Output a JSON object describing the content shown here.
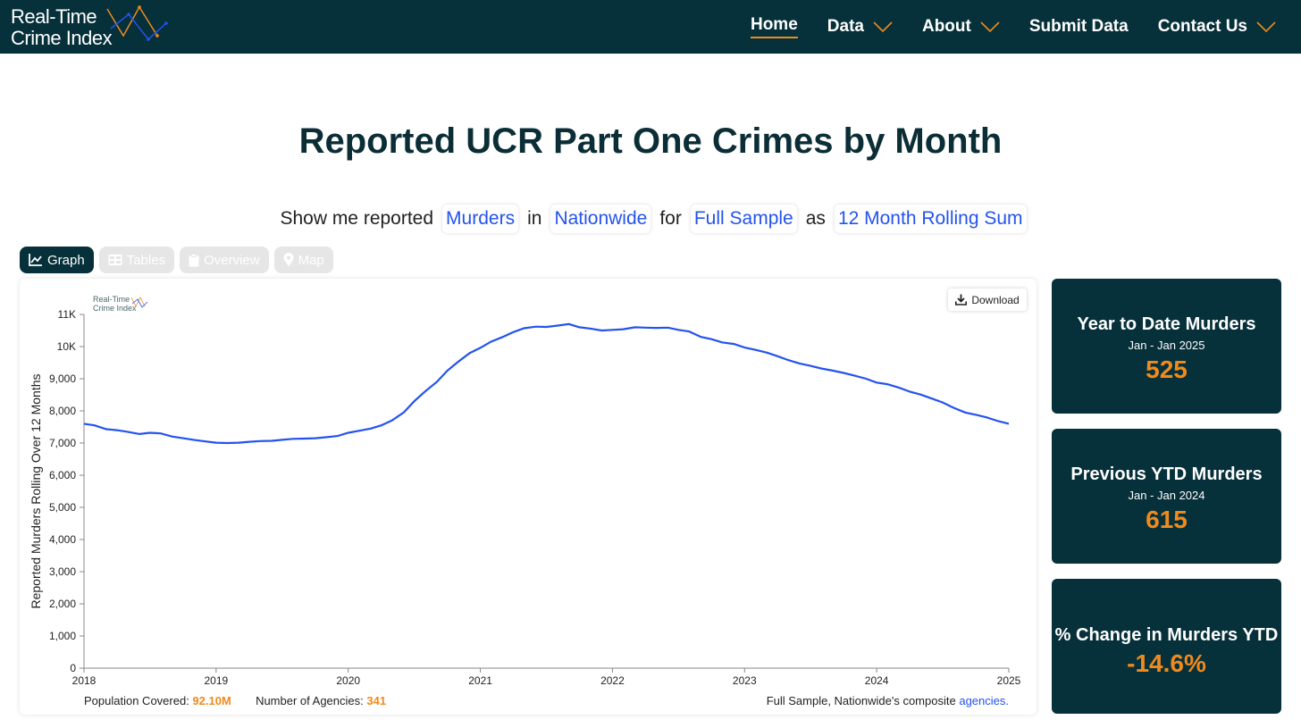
{
  "nav": {
    "logo_line1": "Real-Time",
    "logo_line2": "Crime Index",
    "items": [
      {
        "label": "Home",
        "active": true,
        "dropdown": false
      },
      {
        "label": "Data",
        "active": false,
        "dropdown": true
      },
      {
        "label": "About",
        "active": false,
        "dropdown": true
      },
      {
        "label": "Submit Data",
        "active": false,
        "dropdown": false
      },
      {
        "label": "Contact Us",
        "active": false,
        "dropdown": true
      }
    ]
  },
  "page_title": "Reported UCR Part One Crimes by Month",
  "selector": {
    "prefix": "Show me reported",
    "crime": "Murders",
    "in_word": "in",
    "region": "Nationwide",
    "for_word": "for",
    "sample": "Full Sample",
    "as_word": "as",
    "measure": "12 Month Rolling Sum"
  },
  "tabs": [
    {
      "label": "Graph",
      "icon": "line-chart-icon",
      "active": true
    },
    {
      "label": "Tables",
      "icon": "table-icon",
      "active": false
    },
    {
      "label": "Overview",
      "icon": "clipboard-icon",
      "active": false
    },
    {
      "label": "Map",
      "icon": "map-pin-icon",
      "active": false
    }
  ],
  "download_label": "Download",
  "mini_logo": {
    "line1": "Real-Time",
    "line2": "Crime Index"
  },
  "chart_data": {
    "type": "line",
    "ylabel": "Reported Murders Rolling Over 12 Months",
    "xlabel": "",
    "ylim": [
      0,
      11000
    ],
    "xlim": [
      2018.0,
      2025.0
    ],
    "y_ticks": [
      {
        "v": 0,
        "label": "0"
      },
      {
        "v": 1000,
        "label": "1,000"
      },
      {
        "v": 2000,
        "label": "2,000"
      },
      {
        "v": 3000,
        "label": "3,000"
      },
      {
        "v": 4000,
        "label": "4,000"
      },
      {
        "v": 5000,
        "label": "5,000"
      },
      {
        "v": 6000,
        "label": "6,000"
      },
      {
        "v": 7000,
        "label": "7,000"
      },
      {
        "v": 8000,
        "label": "8,000"
      },
      {
        "v": 9000,
        "label": "9,000"
      },
      {
        "v": 10000,
        "label": "10K"
      },
      {
        "v": 11000,
        "label": "11K"
      }
    ],
    "x_ticks": [
      {
        "v": 2018,
        "label": "2018"
      },
      {
        "v": 2019,
        "label": "2019"
      },
      {
        "v": 2020,
        "label": "2020"
      },
      {
        "v": 2021,
        "label": "2021"
      },
      {
        "v": 2022,
        "label": "2022"
      },
      {
        "v": 2023,
        "label": "2023"
      },
      {
        "v": 2024,
        "label": "2024"
      },
      {
        "v": 2025,
        "label": "2025"
      }
    ],
    "color": "#2353ee",
    "grid": false,
    "series": [
      {
        "points": [
          [
            2018.0,
            7600
          ],
          [
            2018.08,
            7550
          ],
          [
            2018.17,
            7430
          ],
          [
            2018.25,
            7400
          ],
          [
            2018.33,
            7350
          ],
          [
            2018.42,
            7280
          ],
          [
            2018.5,
            7320
          ],
          [
            2018.58,
            7300
          ],
          [
            2018.67,
            7200
          ],
          [
            2018.75,
            7150
          ],
          [
            2018.83,
            7100
          ],
          [
            2018.92,
            7050
          ],
          [
            2019.0,
            7010
          ],
          [
            2019.08,
            7000
          ],
          [
            2019.17,
            7010
          ],
          [
            2019.25,
            7040
          ],
          [
            2019.33,
            7060
          ],
          [
            2019.42,
            7070
          ],
          [
            2019.5,
            7100
          ],
          [
            2019.58,
            7130
          ],
          [
            2019.67,
            7140
          ],
          [
            2019.75,
            7150
          ],
          [
            2019.83,
            7180
          ],
          [
            2019.92,
            7220
          ],
          [
            2020.0,
            7320
          ],
          [
            2020.08,
            7380
          ],
          [
            2020.17,
            7450
          ],
          [
            2020.25,
            7550
          ],
          [
            2020.33,
            7700
          ],
          [
            2020.42,
            7950
          ],
          [
            2020.5,
            8300
          ],
          [
            2020.58,
            8600
          ],
          [
            2020.67,
            8900
          ],
          [
            2020.75,
            9250
          ],
          [
            2020.83,
            9520
          ],
          [
            2020.92,
            9800
          ],
          [
            2021.0,
            9960
          ],
          [
            2021.08,
            10150
          ],
          [
            2021.17,
            10300
          ],
          [
            2021.25,
            10450
          ],
          [
            2021.33,
            10570
          ],
          [
            2021.42,
            10620
          ],
          [
            2021.5,
            10610
          ],
          [
            2021.58,
            10650
          ],
          [
            2021.67,
            10700
          ],
          [
            2021.75,
            10600
          ],
          [
            2021.83,
            10560
          ],
          [
            2021.92,
            10500
          ],
          [
            2022.0,
            10520
          ],
          [
            2022.08,
            10540
          ],
          [
            2022.17,
            10600
          ],
          [
            2022.25,
            10590
          ],
          [
            2022.33,
            10580
          ],
          [
            2022.42,
            10590
          ],
          [
            2022.5,
            10520
          ],
          [
            2022.58,
            10470
          ],
          [
            2022.67,
            10300
          ],
          [
            2022.75,
            10230
          ],
          [
            2022.83,
            10130
          ],
          [
            2022.92,
            10080
          ],
          [
            2023.0,
            9970
          ],
          [
            2023.08,
            9900
          ],
          [
            2023.17,
            9810
          ],
          [
            2023.25,
            9700
          ],
          [
            2023.33,
            9580
          ],
          [
            2023.42,
            9470
          ],
          [
            2023.5,
            9400
          ],
          [
            2023.58,
            9320
          ],
          [
            2023.67,
            9250
          ],
          [
            2023.75,
            9180
          ],
          [
            2023.83,
            9100
          ],
          [
            2023.92,
            9000
          ],
          [
            2024.0,
            8880
          ],
          [
            2024.08,
            8830
          ],
          [
            2024.17,
            8720
          ],
          [
            2024.25,
            8600
          ],
          [
            2024.33,
            8510
          ],
          [
            2024.42,
            8380
          ],
          [
            2024.5,
            8260
          ],
          [
            2024.58,
            8100
          ],
          [
            2024.67,
            7950
          ],
          [
            2024.75,
            7880
          ],
          [
            2024.83,
            7800
          ],
          [
            2024.92,
            7680
          ],
          [
            2025.0,
            7600
          ]
        ]
      }
    ]
  },
  "footer": {
    "population_label": "Population Covered:",
    "population_value": "92.10M",
    "agencies_label": "Number of Agencies:",
    "agencies_value": "341",
    "composite_text": "Full Sample, Nationwide's composite",
    "agencies_link": "agencies."
  },
  "stats": [
    {
      "label": "Year to Date Murders",
      "sub": "Jan - Jan 2025",
      "value": "525"
    },
    {
      "label": "Previous YTD Murders",
      "sub": "Jan - Jan 2024",
      "value": "615"
    },
    {
      "label": "% Change in Murders YTD",
      "sub": "",
      "value": "-14.6%"
    }
  ]
}
